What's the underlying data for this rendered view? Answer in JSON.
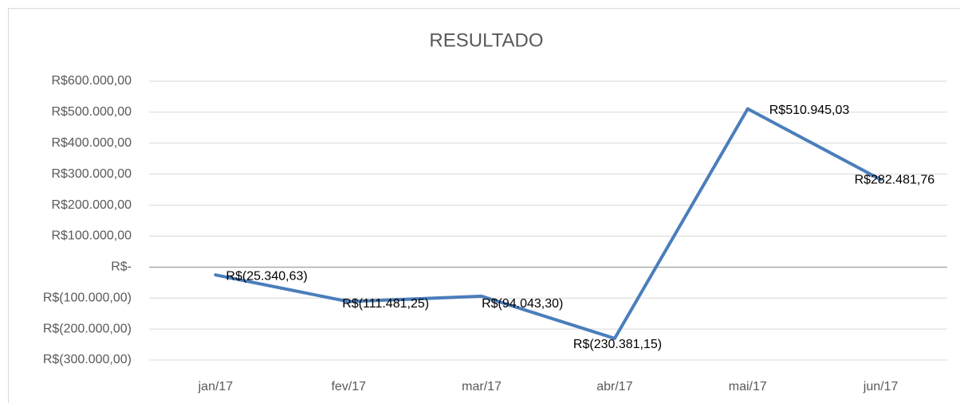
{
  "chart_data": {
    "type": "line",
    "title": "RESULTADO",
    "categories": [
      "jan/17",
      "fev/17",
      "mar/17",
      "abr/17",
      "mai/17",
      "jun/17"
    ],
    "series": [
      {
        "name": "RESULTADO",
        "color": "#4a7ebb",
        "values": [
          -25340.63,
          -111481.25,
          -94043.3,
          -230381.15,
          510945.03,
          282481.76
        ],
        "value_labels": [
          "R$(25.340,63)",
          "R$(111.481,25)",
          "R$(94.043,30)",
          "R$(230.381,15)",
          "R$510.945,03",
          "R$282.481,76"
        ]
      }
    ],
    "ylim": [
      -300000,
      600000
    ],
    "yticks": [
      {
        "value": -300000,
        "label": "R$(300.000,00)"
      },
      {
        "value": -200000,
        "label": "R$(200.000,00)"
      },
      {
        "value": -100000,
        "label": "R$(100.000,00)"
      },
      {
        "value": 0,
        "label": "R$-"
      },
      {
        "value": 100000,
        "label": "R$100.000,00"
      },
      {
        "value": 200000,
        "label": "R$200.000,00"
      },
      {
        "value": 300000,
        "label": "R$300.000,00"
      },
      {
        "value": 400000,
        "label": "R$400.000,00"
      },
      {
        "value": 500000,
        "label": "R$500.000,00"
      },
      {
        "value": 600000,
        "label": "R$600.000,00"
      }
    ],
    "grid": true
  }
}
